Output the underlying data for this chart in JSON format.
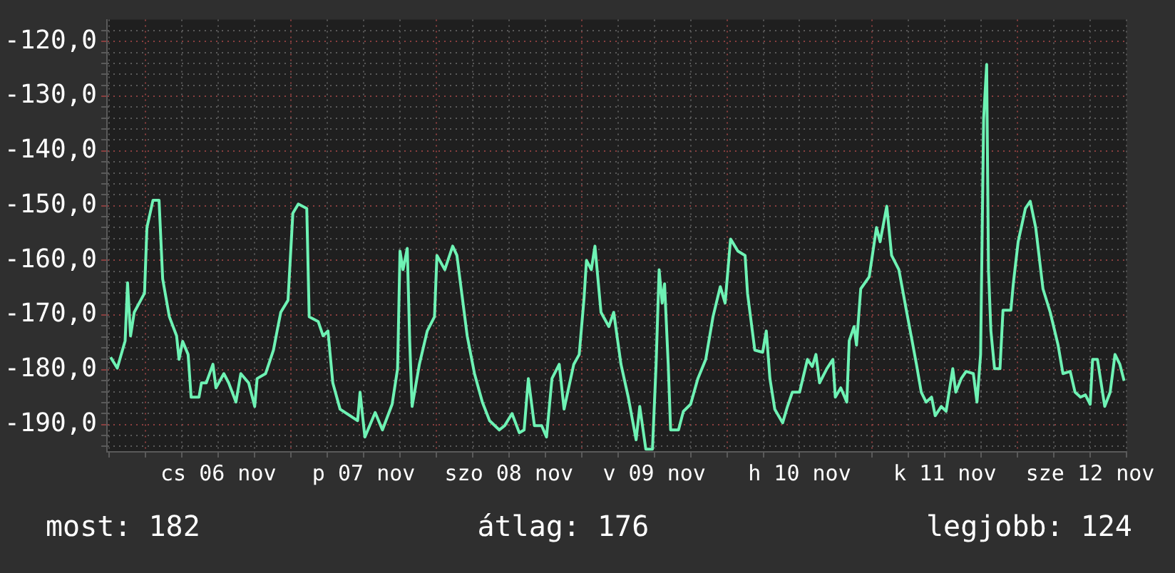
{
  "chart_data": {
    "type": "line",
    "x": [
      "--11-05T18:12",
      "--11-05T19:18",
      "--11-05T20:36",
      "--11-05T21:00",
      "--11-05T21:30",
      "--11-05T22:06",
      "--11-05T23:48",
      "--11-06T00:12",
      "--11-06T01:12",
      "--11-06T02:12",
      "--11-06T02:48",
      "--11-06T03:54",
      "--11-06T05:06",
      "--11-06T05:30",
      "--11-06T06:06",
      "--11-06T07:00",
      "--11-06T07:30",
      "--11-06T08:48",
      "--11-06T09:12",
      "--11-06T10:00",
      "--11-06T11:06",
      "--11-06T11:36",
      "--11-06T12:54",
      "--11-06T13:42",
      "--11-06T14:54",
      "--11-06T15:42",
      "--11-06T17:00",
      "--11-06T18:00",
      "--11-06T18:24",
      "--11-06T19:48",
      "--11-06T21:06",
      "--11-06T21:42",
      "--11-06T22:18",
      "--11-06T23:30",
      "--11-07T00:18",
      "--11-07T01:12",
      "--11-07T02:36",
      "--11-07T03:00",
      "--11-07T04:30",
      "--11-07T05:18",
      "--11-07T06:06",
      "--11-07T06:54",
      "--11-07T08:06",
      "--11-07T11:00",
      "--11-07T11:24",
      "--11-07T12:12",
      "--11-07T13:54",
      "--11-07T15:06",
      "--11-07T16:42",
      "--11-07T17:36",
      "--11-07T18:00",
      "--11-07T18:30",
      "--11-07T19:12",
      "--11-07T19:36",
      "--11-07T20:00",
      "--11-07T21:12",
      "--11-07T22:30",
      "--11-07T23:42",
      "--11-08T00:06",
      "--11-08T01:24",
      "--11-08T02:42",
      "--11-08T03:24",
      "--11-08T05:06",
      "--11-08T06:18",
      "--11-08T07:36",
      "--11-08T08:48",
      "--11-08T10:24",
      "--11-08T11:18",
      "--11-08T12:30",
      "--11-08T13:42",
      "--11-08T14:30",
      "--11-08T15:12",
      "--11-08T16:12",
      "--11-08T17:24",
      "--11-08T18:12",
      "--11-08T19:06",
      "--11-08T20:18",
      "--11-08T21:06",
      "--11-08T22:42",
      "--11-08T23:36",
      "--11-09T00:24",
      "--11-09T00:48",
      "--11-09T01:36",
      "--11-09T02:12",
      "--11-09T03:12",
      "--11-09T04:30",
      "--11-09T05:18",
      "--11-09T06:30",
      "--11-09T07:42",
      "--11-09T09:00",
      "--11-09T09:36",
      "--11-09T10:36",
      "--11-09T11:42",
      "--11-09T12:18",
      "--11-09T12:48",
      "--11-09T13:18",
      "--11-09T13:42",
      "--11-09T14:18",
      "--11-09T14:42",
      "--11-09T16:00",
      "--11-09T16:48",
      "--11-09T18:00",
      "--11-09T19:12",
      "--11-09T20:30",
      "--11-09T21:42",
      "--11-09T22:54",
      "--11-09T23:42",
      "--11-10T00:36",
      "--11-10T01:48",
      "--11-10T03:00",
      "--11-10T03:24",
      "--11-10T04:36",
      "--11-10T05:54",
      "--11-10T06:30",
      "--11-10T07:06",
      "--11-10T07:54",
      "--11-10T09:12",
      "--11-10T10:00",
      "--11-10T10:48",
      "--11-10T12:00",
      "--11-10T13:18",
      "--11-10T14:06",
      "--11-10T14:42",
      "--11-10T15:18",
      "--11-10T16:30",
      "--11-10T17:30",
      "--11-10T17:54",
      "--11-10T18:48",
      "--11-10T19:48",
      "--11-10T20:12",
      "--11-10T21:00",
      "--11-10T21:24",
      "--11-10T22:06",
      "--11-10T23:30",
      "--11-11T00:42",
      "--11-11T01:18",
      "--11-11T02:24",
      "--11-11T03:12",
      "--11-11T04:24",
      "--11-11T05:42",
      "--11-11T06:30",
      "--11-11T07:18",
      "--11-11T08:06",
      "--11-11T08:54",
      "--11-11T09:48",
      "--11-11T10:24",
      "--11-11T11:24",
      "--11-11T12:12",
      "--11-11T13:18",
      "--11-11T13:48",
      "--11-11T14:42",
      "--11-11T15:30",
      "--11-11T16:42",
      "--11-11T17:18",
      "--11-11T17:54",
      "--11-11T18:24",
      "--11-11T18:54",
      "--11-11T19:12",
      "--11-11T19:36",
      "--11-11T20:12",
      "--11-11T21:06",
      "--11-11T21:36",
      "--11-11T22:54",
      "--11-11T23:18",
      "--11-12T00:06",
      "--11-12T01:18",
      "--11-12T02:06",
      "--11-12T03:00",
      "--11-12T04:12",
      "--11-12T05:24",
      "--11-12T06:42",
      "--11-12T07:30",
      "--11-12T08:42",
      "--11-12T09:30",
      "--11-12T10:24",
      "--11-12T11:12",
      "--11-12T12:00",
      "--11-12T12:24",
      "--11-12T13:12",
      "--11-12T14:24",
      "--11-12T15:18",
      "--11-12T16:06",
      "--11-12T16:54",
      "--11-12T17:36"
    ],
    "series": [
      {
        "color": "#6ef2b4",
        "values": [
          -177.7,
          -179.7,
          -174.7,
          -164.1,
          -173.8,
          -169.5,
          -166,
          -154,
          -149,
          -149,
          -163.4,
          -170.3,
          -173.8,
          -178.1,
          -174.8,
          -177.2,
          -185,
          -185,
          -182.4,
          -182.4,
          -179,
          -183.3,
          -180.7,
          -182.4,
          -185.9,
          -180.7,
          -182.4,
          -186.7,
          -181.6,
          -180.7,
          -176.4,
          -172.9,
          -169.5,
          -167.3,
          -151.4,
          -149.7,
          -150.5,
          -170.3,
          -171.2,
          -173.8,
          -172.9,
          -182.4,
          -187.2,
          -189.3,
          -184.1,
          -192.3,
          -187.8,
          -191,
          -186.3,
          -179.8,
          -158.3,
          -161.7,
          -157.8,
          -174.7,
          -186.7,
          -179,
          -172.9,
          -170.3,
          -159.1,
          -161.7,
          -157.4,
          -159.1,
          -173.8,
          -180.7,
          -185.9,
          -189.3,
          -191,
          -190.2,
          -188,
          -191.5,
          -191,
          -181.6,
          -190.2,
          -190.2,
          -192.3,
          -181.6,
          -179,
          -187.2,
          -179,
          -177.2,
          -166.9,
          -160,
          -161.7,
          -157.4,
          -169.5,
          -172.1,
          -169.5,
          -179,
          -185,
          -192.8,
          -186.7,
          -194.5,
          -194.5,
          -179,
          -161.7,
          -167.8,
          -164.3,
          -179,
          -191,
          -191,
          -187.6,
          -186.3,
          -181.6,
          -178.1,
          -170.3,
          -164.8,
          -167.8,
          -156.1,
          -158.3,
          -159.1,
          -166,
          -176.4,
          -176.8,
          -172.9,
          -181.6,
          -187.2,
          -189.7,
          -186.7,
          -184.1,
          -184.1,
          -178.1,
          -179.4,
          -177.2,
          -182.4,
          -179.8,
          -178.1,
          -185,
          -183.3,
          -185.9,
          -174.7,
          -172.1,
          -175.5,
          -165.2,
          -163,
          -154,
          -156.6,
          -150.1,
          -159.1,
          -161.7,
          -169.5,
          -174.2,
          -179,
          -184.1,
          -185.9,
          -185,
          -188.4,
          -186.7,
          -187.6,
          -179.8,
          -184.1,
          -181.6,
          -180.3,
          -180.7,
          -185.9,
          -177.2,
          -134.1,
          -124.2,
          -161.7,
          -172.9,
          -179.8,
          -179.8,
          -169.1,
          -169.1,
          -164.3,
          -156.6,
          -150.5,
          -149.2,
          -154,
          -165.2,
          -169.5,
          -175.5,
          -180.7,
          -180.3,
          -184.1,
          -185,
          -184.6,
          -186.3,
          -178.1,
          -178.1,
          -186.7,
          -184.1,
          -177.2,
          -179,
          -182
        ]
      }
    ],
    "xlim": [
      "--11-05T17:36",
      "--11-12T18:00"
    ],
    "xticks": [
      {
        "value": "--11-05T18:00",
        "label": null
      },
      {
        "value": "--11-06T00:00",
        "label": null
      },
      {
        "value": "--11-06T06:00",
        "label": null
      },
      {
        "value": "--11-06T12:00",
        "label": "cs 06 nov"
      },
      {
        "value": "--11-06T18:00",
        "label": null
      },
      {
        "value": "--11-07T00:00",
        "label": null
      },
      {
        "value": "--11-07T06:00",
        "label": null
      },
      {
        "value": "--11-07T12:00",
        "label": "p 07 nov"
      },
      {
        "value": "--11-07T18:00",
        "label": null
      },
      {
        "value": "--11-08T00:00",
        "label": null
      },
      {
        "value": "--11-08T06:00",
        "label": null
      },
      {
        "value": "--11-08T12:00",
        "label": "szo 08 nov"
      },
      {
        "value": "--11-08T18:00",
        "label": null
      },
      {
        "value": "--11-09T00:00",
        "label": null
      },
      {
        "value": "--11-09T06:00",
        "label": null
      },
      {
        "value": "--11-09T12:00",
        "label": "v 09 nov"
      },
      {
        "value": "--11-09T18:00",
        "label": null
      },
      {
        "value": "--11-10T00:00",
        "label": null
      },
      {
        "value": "--11-10T06:00",
        "label": null
      },
      {
        "value": "--11-10T12:00",
        "label": "h 10 nov"
      },
      {
        "value": "--11-10T18:00",
        "label": null
      },
      {
        "value": "--11-11T00:00",
        "label": null
      },
      {
        "value": "--11-11T06:00",
        "label": null
      },
      {
        "value": "--11-11T12:00",
        "label": "k 11 nov"
      },
      {
        "value": "--11-11T18:00",
        "label": null
      },
      {
        "value": "--11-12T00:00",
        "label": null
      },
      {
        "value": "--11-12T06:00",
        "label": null
      },
      {
        "value": "--11-12T12:00",
        "label": "sze 12 nov"
      },
      {
        "value": "--11-12T18:00",
        "label": null
      }
    ],
    "ylim": [
      -195,
      -116
    ],
    "yticks": [
      {
        "value": -194,
        "label": null
      },
      {
        "value": -192,
        "label": null
      },
      {
        "value": -190,
        "label": "-190,0"
      },
      {
        "value": -188,
        "label": null
      },
      {
        "value": -186,
        "label": null
      },
      {
        "value": -184,
        "label": null
      },
      {
        "value": -182,
        "label": null
      },
      {
        "value": -180,
        "label": "-180,0"
      },
      {
        "value": -178,
        "label": null
      },
      {
        "value": -176,
        "label": null
      },
      {
        "value": -174,
        "label": null
      },
      {
        "value": -172,
        "label": null
      },
      {
        "value": -170,
        "label": "-170,0"
      },
      {
        "value": -168,
        "label": null
      },
      {
        "value": -166,
        "label": null
      },
      {
        "value": -164,
        "label": null
      },
      {
        "value": -162,
        "label": null
      },
      {
        "value": -160,
        "label": "-160,0"
      },
      {
        "value": -158,
        "label": null
      },
      {
        "value": -156,
        "label": null
      },
      {
        "value": -154,
        "label": null
      },
      {
        "value": -152,
        "label": null
      },
      {
        "value": -150,
        "label": "-150,0"
      },
      {
        "value": -148,
        "label": null
      },
      {
        "value": -146,
        "label": null
      },
      {
        "value": -144,
        "label": null
      },
      {
        "value": -142,
        "label": null
      },
      {
        "value": -140,
        "label": "-140,0"
      },
      {
        "value": -138,
        "label": null
      },
      {
        "value": -136,
        "label": null
      },
      {
        "value": -134,
        "label": null
      },
      {
        "value": -132,
        "label": null
      },
      {
        "value": -130,
        "label": "-130,0"
      },
      {
        "value": -128,
        "label": null
      },
      {
        "value": -126,
        "label": null
      },
      {
        "value": -124,
        "label": null
      },
      {
        "value": -122,
        "label": null
      },
      {
        "value": -120,
        "label": "-120,0"
      },
      {
        "value": -118,
        "label": null
      }
    ],
    "grid": true,
    "legend": false,
    "marker": "none",
    "line_style": "solid",
    "annotations": [
      "most: 182",
      "átlag: 176",
      "legjobb: 124"
    ]
  }
}
